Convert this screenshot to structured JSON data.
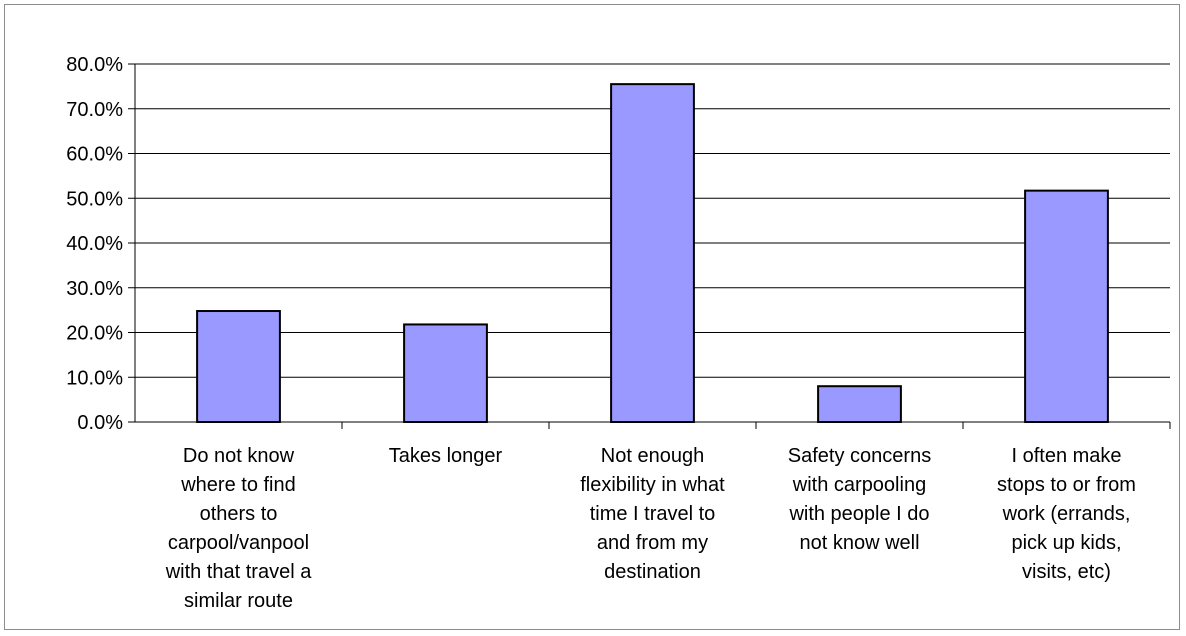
{
  "chart_data": {
    "type": "bar",
    "categories": [
      [
        "Do not know",
        "where to find",
        "others to",
        "carpool/vanpool",
        "with that travel a",
        "similar route"
      ],
      [
        "Takes longer"
      ],
      [
        "Not enough",
        "flexibility in what",
        "time I travel to",
        "and from my",
        "destination"
      ],
      [
        "Safety concerns",
        "with carpooling",
        "with people I do",
        "not know well"
      ],
      [
        "I often make",
        "stops to or from",
        "work (errands,",
        "pick up kids,",
        "visits, etc)"
      ]
    ],
    "values": [
      24.8,
      21.8,
      75.5,
      8.0,
      51.7
    ],
    "ylim": [
      0,
      80
    ],
    "yticks": [
      0,
      10,
      20,
      30,
      40,
      50,
      60,
      70,
      80
    ],
    "ytick_labels": [
      "0.0%",
      "10.0%",
      "20.0%",
      "30.0%",
      "40.0%",
      "50.0%",
      "60.0%",
      "70.0%",
      "80.0%"
    ],
    "grid": true,
    "colors": {
      "bar_fill": "#9999ff",
      "bar_stroke": "#000000",
      "gridline": "#000000",
      "axis": "#000000"
    }
  }
}
